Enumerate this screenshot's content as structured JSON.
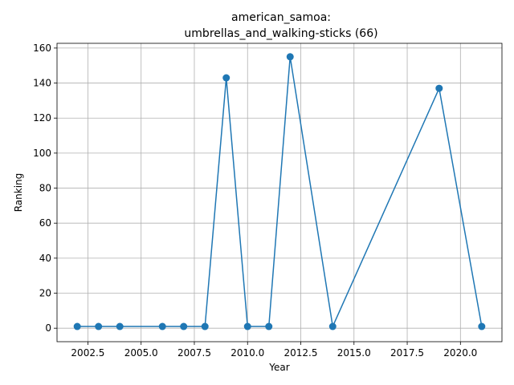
{
  "chart_data": {
    "type": "line",
    "title_line1": "american_samoa:",
    "title_line2": "umbrellas_and_walking-sticks (66)",
    "xlabel": "Year",
    "ylabel": "Ranking",
    "xlim": [
      2001.05,
      2021.95
    ],
    "ylim": [
      -7.7,
      162.7
    ],
    "xticks": [
      2002.5,
      2005.0,
      2007.5,
      2010.0,
      2012.5,
      2015.0,
      2017.5,
      2020.0
    ],
    "xtick_labels": [
      "2002.5",
      "2005.0",
      "2007.5",
      "2010.0",
      "2012.5",
      "2015.0",
      "2017.5",
      "2020.0"
    ],
    "yticks": [
      0,
      20,
      40,
      60,
      80,
      100,
      120,
      140,
      160
    ],
    "ytick_labels": [
      "0",
      "20",
      "40",
      "60",
      "80",
      "100",
      "120",
      "140",
      "160"
    ],
    "grid": true,
    "color": "#1f77b4",
    "x": [
      2002,
      2003,
      2004,
      2006,
      2007,
      2008,
      2009,
      2010,
      2011,
      2012,
      2014,
      2019,
      2021
    ],
    "y": [
      1,
      1,
      1,
      1,
      1,
      1,
      143,
      1,
      1,
      155,
      1,
      137,
      1
    ]
  }
}
